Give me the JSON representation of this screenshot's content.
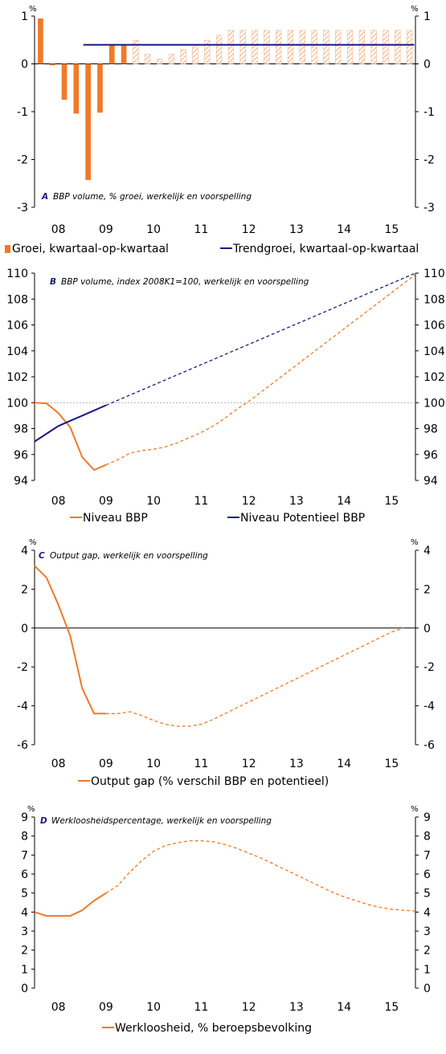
{
  "colors": {
    "orange": "#f07a28",
    "navy": "#1a1a80",
    "hatch": "#f4b48a",
    "zero_line": "#b0b0b0"
  },
  "x_axis": {
    "type": "quarterly",
    "start": "2008Q1",
    "end": "2015Q4",
    "tick_labels": [
      "08",
      "09",
      "10",
      "11",
      "12",
      "13",
      "14",
      "15"
    ]
  },
  "chart_data": [
    {
      "panel": "A",
      "type": "bar",
      "title": "BBP volume, % groei, werkelijk en voorspelling",
      "unit_label": "%",
      "ylim": [
        -3,
        1
      ],
      "yticks": [
        1,
        0,
        -1,
        -2,
        -3
      ],
      "categories_start": "2008Q1",
      "last_actual_index": 7,
      "series": [
        {
          "name": "Groei, kwartaal-op-kwartaal",
          "type": "bar",
          "values": [
            0.95,
            -0.03,
            -0.75,
            -1.04,
            -2.43,
            -1.02,
            0.41,
            0.4,
            0.49,
            0.2,
            0.1,
            0.2,
            0.3,
            0.4,
            0.49,
            0.6,
            0.7,
            0.7,
            0.7,
            0.7,
            0.7,
            0.7,
            0.7,
            0.7,
            0.7,
            0.7,
            0.7,
            0.7,
            0.7,
            0.7,
            0.7,
            0.7
          ]
        },
        {
          "name": "Trendgroei, kwartaal-op-kwartaal",
          "type": "line",
          "from": "2009Q1",
          "to": "2015Q4",
          "value": 0.4
        }
      ],
      "legend": [
        "Groei, kwartaal-op-kwartaal",
        "Trendgroei, kwartaal-op-kwartaal"
      ]
    },
    {
      "panel": "B",
      "type": "line",
      "title": "BBP volume, index 2008K1=100, werkelijk en voorspelling",
      "ylim": [
        94,
        110
      ],
      "yticks": [
        110,
        108,
        106,
        104,
        102,
        100,
        98,
        96,
        94
      ],
      "reference_line": 100,
      "series": [
        {
          "name": "Niveau BBP",
          "actual": [
            [
              0,
              100.0
            ],
            [
              1,
              99.95
            ],
            [
              2,
              99.2
            ],
            [
              3,
              98.1
            ],
            [
              4,
              95.8
            ],
            [
              5,
              94.8
            ],
            [
              6,
              95.2
            ]
          ],
          "forecast": [
            [
              6,
              95.2
            ],
            [
              7,
              95.6
            ],
            [
              8,
              96.1
            ],
            [
              9,
              96.3
            ],
            [
              10,
              96.4
            ],
            [
              11,
              96.6
            ],
            [
              12,
              96.9
            ],
            [
              13,
              97.3
            ],
            [
              14,
              97.7
            ],
            [
              15,
              98.2
            ],
            [
              16,
              98.8
            ],
            [
              17,
              99.5
            ],
            [
              18,
              100.1
            ],
            [
              19,
              100.8
            ],
            [
              20,
              101.5
            ],
            [
              21,
              102.2
            ],
            [
              22,
              102.9
            ],
            [
              23,
              103.6
            ],
            [
              24,
              104.3
            ],
            [
              25,
              105.0
            ],
            [
              26,
              105.7
            ],
            [
              27,
              106.4
            ],
            [
              28,
              107.1
            ],
            [
              29,
              107.8
            ],
            [
              30,
              108.5
            ],
            [
              31,
              109.2
            ],
            [
              32,
              109.9
            ]
          ]
        },
        {
          "name": "Niveau Potentieel BBP",
          "actual": [
            [
              0,
              97.0
            ],
            [
              1,
              97.6
            ],
            [
              2,
              98.2
            ],
            [
              3,
              98.6
            ],
            [
              4,
              99.0
            ],
            [
              5,
              99.4
            ],
            [
              6,
              99.8
            ]
          ],
          "forecast": [
            [
              6,
              99.8
            ],
            [
              32,
              110.0
            ]
          ]
        }
      ],
      "legend": [
        "Niveau BBP",
        "Niveau Potentieel BBP"
      ]
    },
    {
      "panel": "C",
      "type": "line",
      "title": "Output gap, werkelijk en voorspelling",
      "unit_label": "%",
      "ylim": [
        -6,
        4
      ],
      "yticks": [
        4,
        2,
        0,
        -2,
        -4,
        -6
      ],
      "series": [
        {
          "name": "Output gap (% verschil BBP en potentieel)",
          "actual": [
            [
              0,
              3.2
            ],
            [
              1,
              2.6
            ],
            [
              2,
              1.2
            ],
            [
              3,
              -0.4
            ],
            [
              4,
              -3.1
            ],
            [
              5,
              -4.4
            ],
            [
              6,
              -4.4
            ]
          ],
          "forecast": [
            [
              6,
              -4.4
            ],
            [
              7,
              -4.4
            ],
            [
              8,
              -4.3
            ],
            [
              9,
              -4.5
            ],
            [
              10,
              -4.75
            ],
            [
              11,
              -4.95
            ],
            [
              12,
              -5.05
            ],
            [
              13,
              -5.05
            ],
            [
              14,
              -4.95
            ],
            [
              15,
              -4.7
            ],
            [
              16,
              -4.4
            ],
            [
              17,
              -4.1
            ],
            [
              18,
              -3.8
            ],
            [
              19,
              -3.5
            ],
            [
              20,
              -3.2
            ],
            [
              21,
              -2.9
            ],
            [
              22,
              -2.6
            ],
            [
              23,
              -2.3
            ],
            [
              24,
              -2.0
            ],
            [
              25,
              -1.7
            ],
            [
              26,
              -1.4
            ],
            [
              27,
              -1.1
            ],
            [
              28,
              -0.8
            ],
            [
              29,
              -0.5
            ],
            [
              30,
              -0.2
            ],
            [
              31,
              0.0
            ]
          ]
        }
      ],
      "legend": [
        "Output gap (% verschil BBP en potentieel)"
      ]
    },
    {
      "panel": "D",
      "type": "line",
      "title": "Werkloosheidspercentage, werkelijk en voorspelling",
      "unit_label": "%",
      "ylim": [
        0,
        9
      ],
      "yticks": [
        9,
        8,
        7,
        6,
        5,
        4,
        3,
        2,
        1,
        0
      ],
      "series": [
        {
          "name": "Werkloosheid, % beroepsbevolking",
          "actual": [
            [
              0,
              4.0
            ],
            [
              1,
              3.8
            ],
            [
              2,
              3.8
            ],
            [
              3,
              3.8
            ],
            [
              4,
              4.1
            ],
            [
              5,
              4.6
            ],
            [
              6,
              5.0
            ]
          ],
          "forecast": [
            [
              6,
              5.0
            ],
            [
              7,
              5.4
            ],
            [
              8,
              6.1
            ],
            [
              9,
              6.7
            ],
            [
              10,
              7.2
            ],
            [
              11,
              7.5
            ],
            [
              12,
              7.65
            ],
            [
              13,
              7.75
            ],
            [
              14,
              7.75
            ],
            [
              15,
              7.7
            ],
            [
              16,
              7.55
            ],
            [
              17,
              7.35
            ],
            [
              18,
              7.1
            ],
            [
              19,
              6.85
            ],
            [
              20,
              6.55
            ],
            [
              21,
              6.25
            ],
            [
              22,
              5.95
            ],
            [
              23,
              5.65
            ],
            [
              24,
              5.35
            ],
            [
              25,
              5.05
            ],
            [
              26,
              4.8
            ],
            [
              27,
              4.6
            ],
            [
              28,
              4.4
            ],
            [
              29,
              4.25
            ],
            [
              30,
              4.15
            ],
            [
              31,
              4.1
            ],
            [
              32,
              4.05
            ]
          ]
        }
      ],
      "legend": [
        "Werkloosheid, % beroepsbevolking"
      ]
    }
  ]
}
